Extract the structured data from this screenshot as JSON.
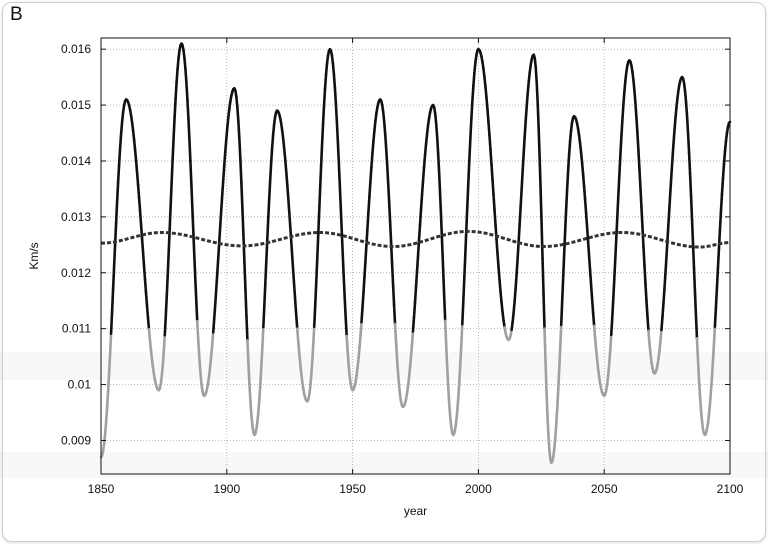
{
  "panel_label": "B",
  "chart_data": {
    "type": "line",
    "xlabel": "year",
    "ylabel": "Km/s",
    "xlim": [
      1850,
      2100
    ],
    "ylim": [
      0.0084,
      0.0162
    ],
    "x_ticks": [
      1850,
      1900,
      1950,
      2000,
      2050,
      2100
    ],
    "y_ticks": [
      0.009,
      0.01,
      0.011,
      0.012,
      0.013,
      0.014,
      0.015,
      0.016
    ],
    "y_tick_labels": [
      "0.009",
      "0.01",
      "0.011",
      "0.012",
      "0.013",
      "0.014",
      "0.015",
      "0.016"
    ],
    "grid": true,
    "threshold_color_above": "#111111",
    "threshold_color_below": "#a0a0a0",
    "series": [
      {
        "color": "#111111",
        "style": "solid",
        "extrema": [
          [
            1850,
            0.0087
          ],
          [
            1860,
            0.0151
          ],
          [
            1873,
            0.0099
          ],
          [
            1882,
            0.0161
          ],
          [
            1891,
            0.0098
          ],
          [
            1903,
            0.0153
          ],
          [
            1911,
            0.0091
          ],
          [
            1920,
            0.0149
          ],
          [
            1932,
            0.0097
          ],
          [
            1941,
            0.016
          ],
          [
            1950,
            0.0099
          ],
          [
            1961,
            0.0151
          ],
          [
            1970,
            0.0096
          ],
          [
            1982,
            0.015
          ],
          [
            1990,
            0.0091
          ],
          [
            2000,
            0.016
          ],
          [
            2012,
            0.0108
          ],
          [
            2022,
            0.0159
          ],
          [
            2029,
            0.0086
          ],
          [
            2038,
            0.0148
          ],
          [
            2050,
            0.0098
          ],
          [
            2060,
            0.0158
          ],
          [
            2070,
            0.0102
          ],
          [
            2081,
            0.0155
          ],
          [
            2090,
            0.0091
          ],
          [
            2100,
            0.0147
          ]
        ]
      },
      {
        "color": "#333333",
        "style": "dashed",
        "extrema": [
          [
            1850,
            0.01253
          ],
          [
            1874,
            0.01272
          ],
          [
            1906,
            0.01248
          ],
          [
            1937,
            0.01272
          ],
          [
            1966,
            0.01247
          ],
          [
            1996,
            0.01274
          ],
          [
            2026,
            0.01247
          ],
          [
            2057,
            0.01272
          ],
          [
            2088,
            0.01246
          ],
          [
            2100,
            0.01254
          ]
        ]
      }
    ]
  }
}
